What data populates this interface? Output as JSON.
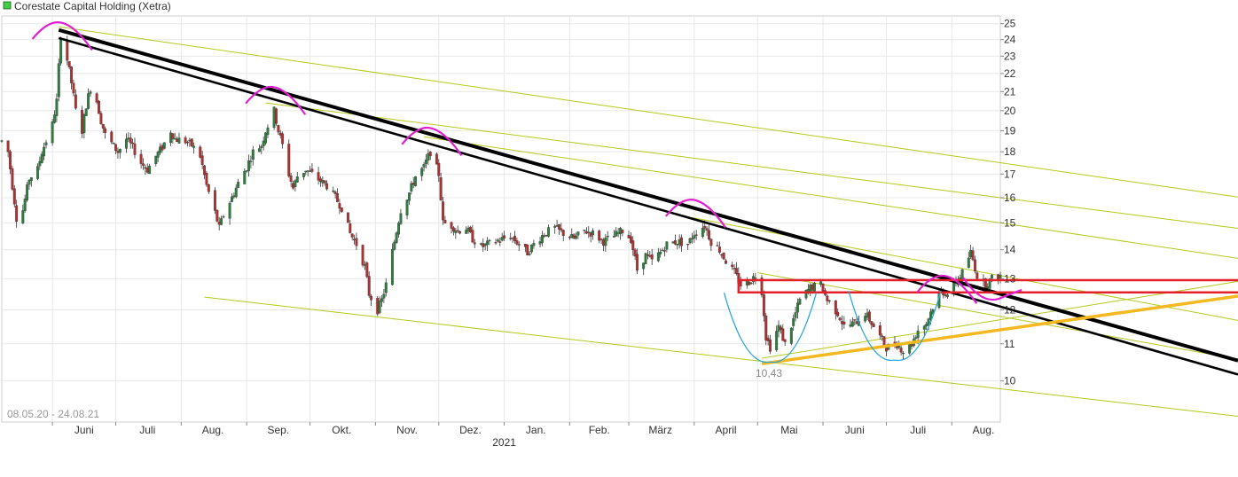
{
  "colors": {
    "legend_swatch": "#44cc44",
    "up_candle": "#2e7d3e",
    "down_candle": "#b03030",
    "grid": "#e8e8e8",
    "axis_text": "#333333",
    "trend_black": "#000000",
    "channel_green": "#b5c81e",
    "support_orange": "#f4b820",
    "resistance_red": "#e3202a",
    "peaks_magenta": "#e020d0",
    "bottoms_teal": "#2aa8d8",
    "low_label": "#888888"
  },
  "chart_data": {
    "type": "candlestick",
    "title": "Corestate Capital Holding (Xetra)",
    "date_range_label": "08.05.20 - 24.08.21",
    "x_tick_labels": [
      "Juni",
      "Juli",
      "Aug.",
      "Sep.",
      "Okt.",
      "Nov.",
      "Dez.",
      "Jan.",
      "Feb.",
      "März",
      "April",
      "Mai",
      "Juni",
      "Juli",
      "Aug."
    ],
    "year_label": "2021",
    "y_tick_labels": [
      "10",
      "11",
      "12",
      "13",
      "14",
      "15",
      "16",
      "17",
      "18",
      "19",
      "20",
      "21",
      "22",
      "23",
      "24",
      "25"
    ],
    "y_scale": "log",
    "ylim": [
      9.0,
      25.5
    ],
    "x_range": [
      "2020-05-08",
      "2021-08-24"
    ],
    "grid": true,
    "low_annotation": "10,43",
    "price_path": [
      [
        "2020-05-08",
        18.5
      ],
      [
        "2020-05-11",
        18.0
      ],
      [
        "2020-05-13",
        16.5
      ],
      [
        "2020-05-15",
        15.2
      ],
      [
        "2020-05-18",
        15.5
      ],
      [
        "2020-05-21",
        16.8
      ],
      [
        "2020-05-25",
        17.2
      ],
      [
        "2020-05-27",
        18.0
      ],
      [
        "2020-05-29",
        18.5
      ],
      [
        "2020-06-01",
        19.3
      ],
      [
        "2020-06-03",
        20.5
      ],
      [
        "2020-06-05",
        24.3
      ],
      [
        "2020-06-08",
        22.8
      ],
      [
        "2020-06-10",
        21.5
      ],
      [
        "2020-06-12",
        20.0
      ],
      [
        "2020-06-15",
        19.0
      ],
      [
        "2020-06-17",
        20.3
      ],
      [
        "2020-06-19",
        21.2
      ],
      [
        "2020-06-22",
        20.5
      ],
      [
        "2020-06-24",
        19.5
      ],
      [
        "2020-06-26",
        18.8
      ],
      [
        "2020-06-29",
        18.4
      ],
      [
        "2020-07-02",
        18.0
      ],
      [
        "2020-07-06",
        18.6
      ],
      [
        "2020-07-09",
        18.2
      ],
      [
        "2020-07-13",
        17.5
      ],
      [
        "2020-07-16",
        17.2
      ],
      [
        "2020-07-20",
        17.8
      ],
      [
        "2020-07-23",
        18.2
      ],
      [
        "2020-07-27",
        19.0
      ],
      [
        "2020-07-29",
        18.6
      ],
      [
        "2020-08-03",
        18.5
      ],
      [
        "2020-08-06",
        18.3
      ],
      [
        "2020-08-10",
        17.8
      ],
      [
        "2020-08-13",
        16.5
      ],
      [
        "2020-08-17",
        15.4
      ],
      [
        "2020-08-19",
        14.8
      ],
      [
        "2020-08-21",
        15.3
      ],
      [
        "2020-08-25",
        16.0
      ],
      [
        "2020-08-28",
        16.6
      ],
      [
        "2020-09-01",
        17.3
      ],
      [
        "2020-09-04",
        18.0
      ],
      [
        "2020-09-08",
        18.3
      ],
      [
        "2020-09-10",
        19.0
      ],
      [
        "2020-09-14",
        20.0
      ],
      [
        "2020-09-16",
        19.0
      ],
      [
        "2020-09-18",
        18.3
      ],
      [
        "2020-09-21",
        17.0
      ],
      [
        "2020-09-23",
        16.4
      ],
      [
        "2020-09-25",
        16.9
      ],
      [
        "2020-09-29",
        17.2
      ],
      [
        "2020-10-02",
        17.0
      ],
      [
        "2020-10-06",
        16.7
      ],
      [
        "2020-10-09",
        16.5
      ],
      [
        "2020-10-13",
        16.0
      ],
      [
        "2020-10-16",
        15.6
      ],
      [
        "2020-10-20",
        14.6
      ],
      [
        "2020-10-23",
        14.2
      ],
      [
        "2020-10-27",
        13.4
      ],
      [
        "2020-10-29",
        12.5
      ],
      [
        "2020-11-02",
        12.0
      ],
      [
        "2020-11-04",
        12.3
      ],
      [
        "2020-11-06",
        12.8
      ],
      [
        "2020-11-10",
        14.3
      ],
      [
        "2020-11-13",
        15.5
      ],
      [
        "2020-11-17",
        16.2
      ],
      [
        "2020-11-20",
        16.9
      ],
      [
        "2020-11-24",
        17.3
      ],
      [
        "2020-11-27",
        18.0
      ],
      [
        "2020-12-01",
        17.0
      ],
      [
        "2020-12-03",
        15.0
      ],
      [
        "2020-12-07",
        14.9
      ],
      [
        "2020-12-10",
        14.7
      ],
      [
        "2020-12-14",
        14.8
      ],
      [
        "2020-12-17",
        14.4
      ],
      [
        "2020-12-21",
        14.1
      ],
      [
        "2020-12-28",
        14.3
      ],
      [
        "2021-01-04",
        14.5
      ],
      [
        "2021-01-08",
        14.2
      ],
      [
        "2021-01-12",
        13.9
      ],
      [
        "2021-01-15",
        14.2
      ],
      [
        "2021-01-20",
        14.6
      ],
      [
        "2021-01-25",
        14.8
      ],
      [
        "2021-01-29",
        14.6
      ],
      [
        "2021-02-03",
        14.4
      ],
      [
        "2021-02-08",
        14.7
      ],
      [
        "2021-02-12",
        14.6
      ],
      [
        "2021-02-17",
        14.3
      ],
      [
        "2021-02-22",
        14.5
      ],
      [
        "2021-02-26",
        14.7
      ],
      [
        "2021-03-02",
        14.4
      ],
      [
        "2021-03-05",
        13.3
      ],
      [
        "2021-03-09",
        13.8
      ],
      [
        "2021-03-12",
        13.6
      ],
      [
        "2021-03-16",
        13.9
      ],
      [
        "2021-03-19",
        14.2
      ],
      [
        "2021-03-24",
        14.3
      ],
      [
        "2021-03-29",
        14.2
      ],
      [
        "2021-04-01",
        14.6
      ],
      [
        "2021-04-06",
        14.9
      ],
      [
        "2021-04-09",
        14.3
      ],
      [
        "2021-04-13",
        14.0
      ],
      [
        "2021-04-16",
        13.6
      ],
      [
        "2021-04-20",
        13.2
      ],
      [
        "2021-04-23",
        12.8
      ],
      [
        "2021-04-27",
        12.9
      ],
      [
        "2021-04-30",
        13.1
      ],
      [
        "2021-05-03",
        12.6
      ],
      [
        "2021-05-05",
        11.2
      ],
      [
        "2021-05-07",
        10.9
      ],
      [
        "2021-05-11",
        11.5
      ],
      [
        "2021-05-14",
        11.0
      ],
      [
        "2021-05-18",
        11.7
      ],
      [
        "2021-05-21",
        12.3
      ],
      [
        "2021-05-26",
        12.7
      ],
      [
        "2021-05-31",
        12.8
      ],
      [
        "2021-06-03",
        12.3
      ],
      [
        "2021-06-08",
        11.9
      ],
      [
        "2021-06-11",
        11.5
      ],
      [
        "2021-06-16",
        11.6
      ],
      [
        "2021-06-21",
        11.9
      ],
      [
        "2021-06-24",
        11.6
      ],
      [
        "2021-06-28",
        11.2
      ],
      [
        "2021-07-01",
        10.9
      ],
      [
        "2021-07-06",
        11.0
      ],
      [
        "2021-07-09",
        10.8
      ],
      [
        "2021-07-13",
        11.0
      ],
      [
        "2021-07-16",
        11.4
      ],
      [
        "2021-07-20",
        11.6
      ],
      [
        "2021-07-23",
        12.1
      ],
      [
        "2021-07-27",
        12.6
      ],
      [
        "2021-07-30",
        12.5
      ],
      [
        "2021-08-03",
        12.9
      ],
      [
        "2021-08-06",
        13.2
      ],
      [
        "2021-08-10",
        13.9
      ],
      [
        "2021-08-13",
        13.1
      ],
      [
        "2021-08-17",
        12.8
      ],
      [
        "2021-08-20",
        13.0
      ],
      [
        "2021-08-24",
        13.1
      ]
    ],
    "series": [
      {
        "type": "trendline",
        "points": [
          [
            "2020-06-04",
            24.6
          ],
          [
            "2021-08-24",
            12.5
          ]
        ]
      },
      {
        "type": "trendline",
        "points": [
          [
            "2020-06-04",
            24.1
          ],
          [
            "2021-08-24",
            12.1
          ]
        ]
      },
      {
        "type": "trendline",
        "points": [
          [
            "2020-06-04",
            24.8
          ],
          [
            "2021-08-24",
            17.5
          ]
        ]
      },
      {
        "type": "trendline",
        "points": [
          [
            "2020-09-10",
            20.4
          ],
          [
            "2021-08-24",
            16.0
          ]
        ]
      },
      {
        "type": "trendline",
        "points": [
          [
            "2020-11-24",
            18.7
          ],
          [
            "2021-08-24",
            15.0
          ]
        ]
      },
      {
        "type": "trendline",
        "points": [
          [
            "2021-03-31",
            15.2
          ],
          [
            "2021-08-24",
            13.1
          ]
        ]
      },
      {
        "type": "trendline",
        "points": [
          [
            "2020-08-12",
            12.4
          ],
          [
            "2021-08-24",
            9.8
          ]
        ]
      },
      {
        "type": "trendline",
        "points": [
          [
            "2021-05-01",
            13.2
          ],
          [
            "2021-08-24",
            11.8
          ]
        ]
      },
      {
        "type": "trendline",
        "points": [
          [
            "2021-05-03",
            10.6
          ],
          [
            "2021-08-24",
            11.7
          ]
        ]
      },
      {
        "type": "support_line",
        "points": [
          [
            "2021-05-03",
            10.45
          ],
          [
            "2021-08-24",
            11.4
          ]
        ]
      },
      {
        "type": "resistance_box",
        "y_range": [
          12.55,
          12.95
        ],
        "x_start": "2021-04-22"
      },
      {
        "type": "peak_arc",
        "x": "2020-06-05",
        "y": 24.9
      },
      {
        "type": "peak_arc",
        "x": "2020-09-14",
        "y": 21.1
      },
      {
        "type": "peak_arc",
        "x": "2020-11-27",
        "y": 19.0
      },
      {
        "type": "peak_arc",
        "x": "2021-04-01",
        "y": 15.8
      },
      {
        "type": "peak_arc",
        "x": "2021-07-29",
        "y": 13.0
      },
      {
        "type": "trough_arc",
        "x": "2021-08-19",
        "y": 12.4
      },
      {
        "type": "bottom_arc",
        "x": "2021-05-07",
        "y": 10.5
      },
      {
        "type": "bottom_arc",
        "x": "2021-07-05",
        "y": 10.55
      }
    ]
  }
}
